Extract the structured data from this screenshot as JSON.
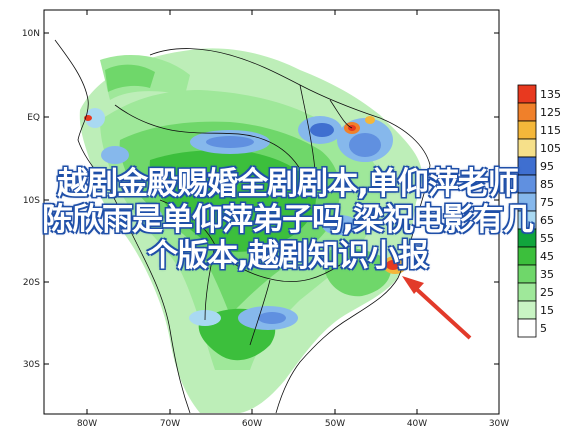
{
  "map": {
    "lat_labels": [
      "10N",
      "EQ",
      "10S",
      "20S",
      "30S"
    ],
    "lon_labels": [
      "80W",
      "70W",
      "60W",
      "50W",
      "40W",
      "30W"
    ]
  },
  "legend": {
    "values": [
      "135",
      "125",
      "115",
      "105",
      "95",
      "85",
      "75",
      "65",
      "55",
      "45",
      "35",
      "25",
      "15",
      "5"
    ],
    "colors": [
      "#e8391f",
      "#f0802a",
      "#f4b73a",
      "#f6e08a",
      "#3f6fd0",
      "#6090e0",
      "#86b8ec",
      "#a9d9f2",
      "#11a53c",
      "#3cbf3c",
      "#6fd76a",
      "#9fe89a",
      "#c9f4c4",
      "#ffffff"
    ]
  },
  "overlay": {
    "lines": [
      "越剧金殿赐婚全剧剧本,单仰萍老师",
      "陈欣雨是单仰萍弟子吗,梁祝电影有几",
      "个版本,越剧知识小报"
    ]
  },
  "annotation": {
    "arrow_color": "#e23a2a"
  }
}
